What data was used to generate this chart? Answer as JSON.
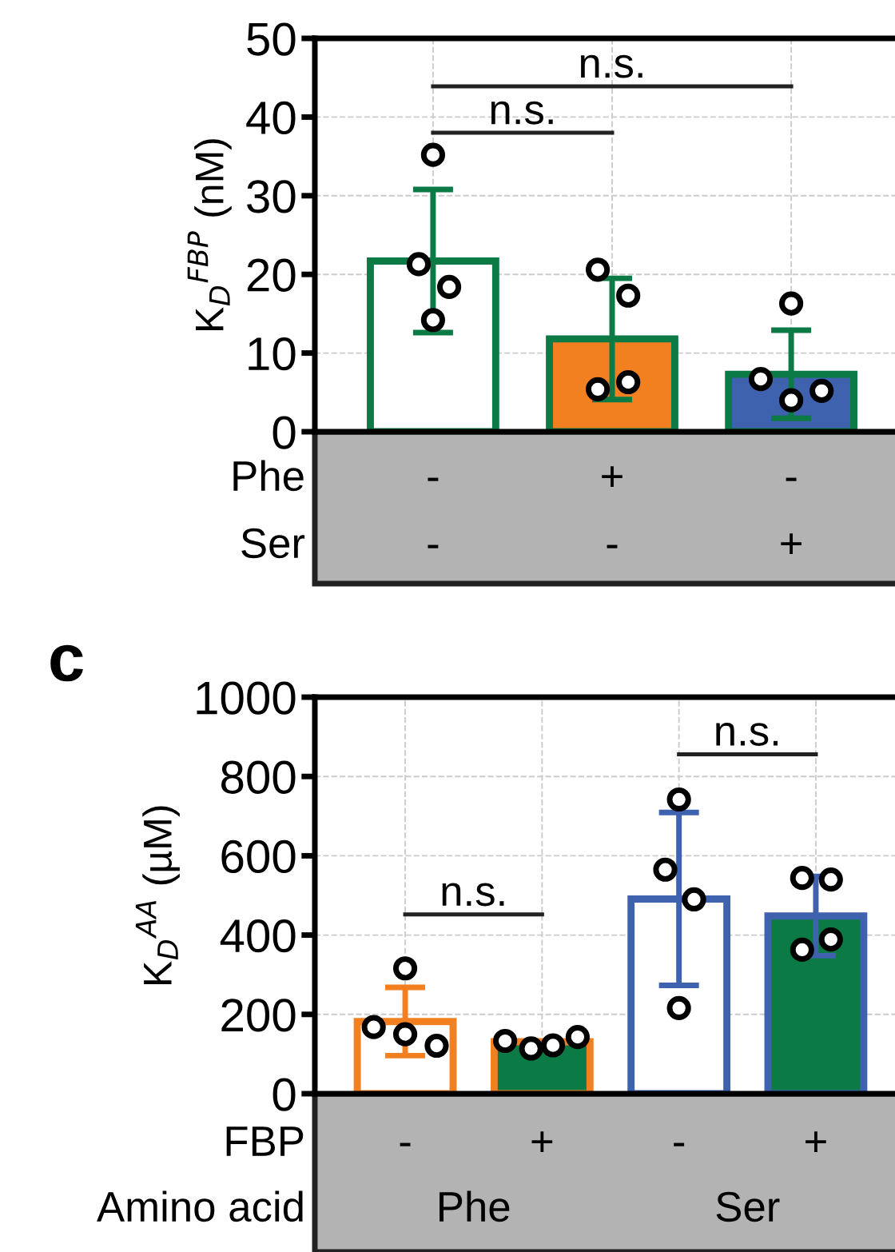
{
  "chart_data": [
    {
      "type": "bar",
      "ylabel": "K$_{D}$$^{FBP}$ (nM)",
      "categories": [
        null,
        null,
        null
      ],
      "ylim": [
        0,
        50
      ],
      "yticks": [
        0,
        10,
        20,
        30,
        40,
        50
      ],
      "grid": true,
      "marker": "circle",
      "series": [
        {
          "values": [
            21.7,
            11.8,
            7.3
          ],
          "color": "#0b7a44",
          "colors": [
            "#ffffff",
            "#f27f20",
            "#3e62ad"
          ],
          "errors": [
            9.1,
            7.7,
            5.6
          ]
        },
        {
          "type": "scatter",
          "color": "#ffffff",
          "values": [
            35.2,
            20.6,
            16.3
          ]
        },
        {
          "type": "scatter",
          "color": "#ffffff",
          "values": [
            21.3,
            17.3,
            6.7
          ]
        },
        {
          "type": "scatter",
          "color": "#ffffff",
          "values": [
            18.4,
            5.4,
            4.0
          ]
        },
        {
          "type": "scatter",
          "color": "#ffffff",
          "values": [
            14.2,
            6.3,
            5.2
          ]
        }
      ],
      "annotations": [
        "n.s.",
        "n.s.",
        "Phe",
        "-",
        "+",
        "-",
        "Ser",
        "-",
        "-",
        "+"
      ]
    },
    {
      "type": "bar",
      "ylabel": "K$_{D}$$^{AA}$ (µM)",
      "categories": [
        null,
        null,
        null,
        null
      ],
      "ylim": [
        0,
        1000
      ],
      "yticks": [
        0,
        200,
        400,
        600,
        800,
        1000
      ],
      "grid": true,
      "marker": "circle",
      "series": [
        {
          "values": [
            182,
            131,
            null,
            null
          ],
          "color": "#f27f20",
          "colors": [
            "#ffffff",
            "#0b7a44",
            "#ffffff",
            "#0b7a44"
          ],
          "errors": [
            86,
            null,
            null,
            null
          ]
        },
        {
          "values": [
            null,
            null,
            491,
            448
          ],
          "color": "#3e62ad",
          "colors": [
            "#ffffff",
            "#0b7a44",
            "#ffffff",
            "#0b7a44"
          ],
          "errors": [
            null,
            null,
            218,
            100
          ]
        },
        {
          "type": "scatter",
          "color": "#ffffff",
          "values": [
            316,
            133,
            742,
            544
          ]
        },
        {
          "type": "scatter",
          "color": "#ffffff",
          "values": [
            168,
            114,
            565,
            540
          ]
        },
        {
          "type": "scatter",
          "color": "#ffffff",
          "values": [
            121,
            122,
            490,
            389
          ]
        },
        {
          "type": "scatter",
          "color": "#ffffff",
          "values": [
            150,
            143,
            216,
            363
          ]
        }
      ],
      "annotations": [
        "c",
        "n.s.",
        "n.s.",
        "FBP",
        "-",
        "+",
        "-",
        "+",
        "Amino acid",
        "Phe",
        "Ser"
      ]
    }
  ]
}
